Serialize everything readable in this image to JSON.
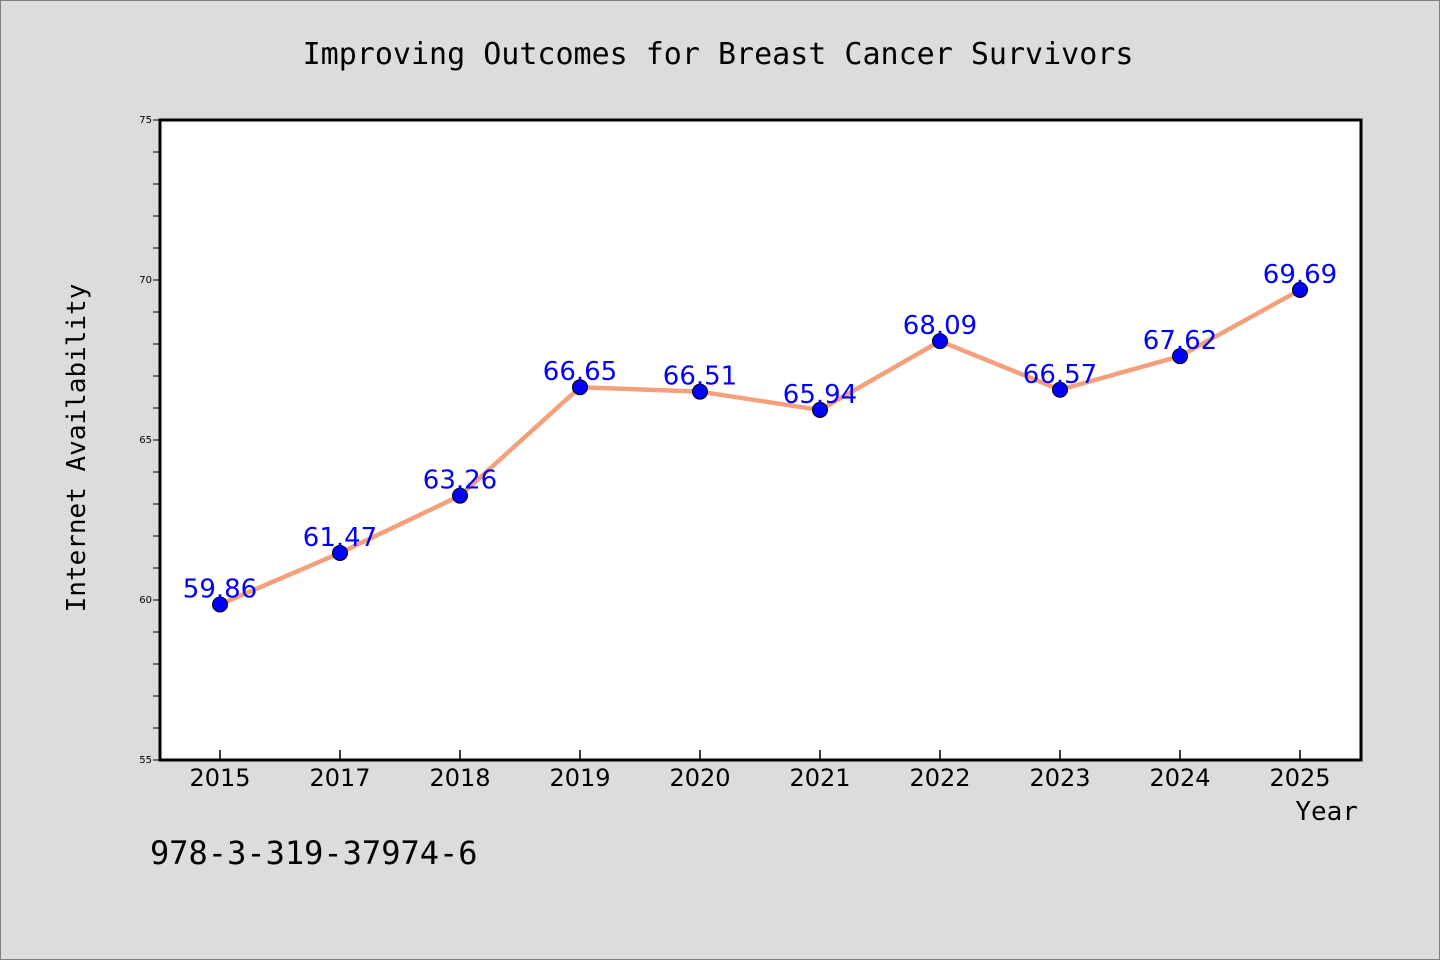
{
  "chart_data": {
    "type": "line",
    "title": "Improving Outcomes for Breast Cancer Survivors",
    "xlabel": "Year",
    "ylabel": "Internet Availability",
    "categories": [
      "2015",
      "2017",
      "2018",
      "2019",
      "2020",
      "2021",
      "2022",
      "2023",
      "2024",
      "2025"
    ],
    "series": [
      {
        "values": [
          59.86,
          61.47,
          63.26,
          66.65,
          66.51,
          65.94,
          68.09,
          66.57,
          67.62,
          69.69
        ],
        "labels": [
          "59.86",
          "61.47",
          "63.26",
          "66.65",
          "66.51",
          "65.94",
          "68.09",
          "66.57",
          "67.62",
          "69.69"
        ],
        "line_color": "#f4a07c",
        "marker_color": "#0000ff"
      }
    ],
    "ylim": [
      55,
      75
    ],
    "yticks": [
      "55",
      "60",
      "65",
      "70",
      "75"
    ],
    "grid": false,
    "legend": "none"
  },
  "footer": {
    "code": "978-3-319-37974-6"
  },
  "colors": {
    "background": "#dcdcdc",
    "plot_background": "#ffffff",
    "label_color": "#0000ff"
  }
}
